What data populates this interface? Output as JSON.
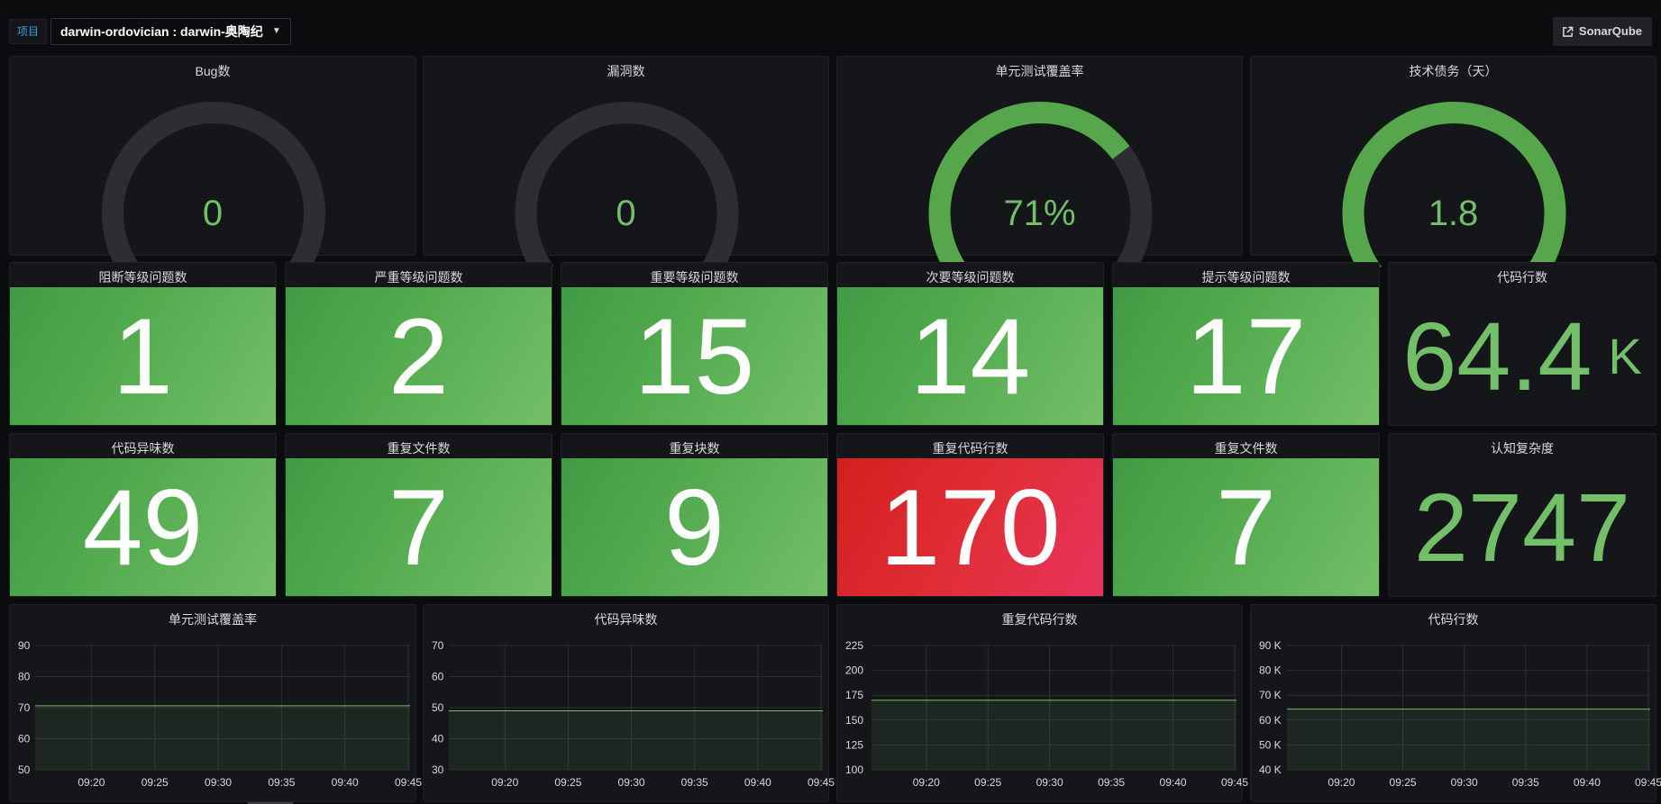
{
  "header": {
    "variable_label": "项目",
    "variable_value": "darwin-ordovician : darwin-奥陶纪",
    "link_label": "SonarQube"
  },
  "colors": {
    "green": "#73bf69",
    "red": "#e02f44",
    "track": "#2d2e31"
  },
  "gauges": [
    {
      "title": "Bug数",
      "value": "0",
      "fraction": 0
    },
    {
      "title": "漏洞数",
      "value": "0",
      "fraction": 0
    },
    {
      "title": "单元测试覆盖率",
      "value": "71%",
      "fraction": 0.71
    },
    {
      "title": "技术债务（天）",
      "value": "1.8",
      "fraction": 1
    }
  ],
  "stats_row1": [
    {
      "title": "阻断等级问题数",
      "value": "1",
      "style": "green"
    },
    {
      "title": "严重等级问题数",
      "value": "2",
      "style": "green"
    },
    {
      "title": "重要等级问题数",
      "value": "15",
      "style": "green"
    },
    {
      "title": "次要等级问题数",
      "value": "14",
      "style": "green"
    },
    {
      "title": "提示等级问题数",
      "value": "17",
      "style": "green"
    },
    {
      "title": "代码行数",
      "value": "64.4",
      "unit": "K",
      "style": "plain"
    }
  ],
  "stats_row2": [
    {
      "title": "代码异味数",
      "value": "49",
      "style": "green"
    },
    {
      "title": "重复文件数",
      "value": "7",
      "style": "green"
    },
    {
      "title": "重复块数",
      "value": "9",
      "style": "green"
    },
    {
      "title": "重复代码行数",
      "value": "170",
      "style": "red"
    },
    {
      "title": "重复文件数",
      "value": "7",
      "style": "green"
    },
    {
      "title": "认知复杂度",
      "value": "2747",
      "style": "plain"
    }
  ],
  "chart_data": [
    {
      "type": "area",
      "title": "单元测试覆盖率",
      "x": [
        "09:20",
        "09:25",
        "09:30",
        "09:35",
        "09:40",
        "09:45"
      ],
      "y_ticks": [
        "50",
        "60",
        "70",
        "80",
        "90"
      ],
      "ylim": [
        50,
        90
      ],
      "series": [
        {
          "values": [
            70.6,
            70.6,
            70.6,
            70.6,
            70.6,
            70.6
          ]
        }
      ]
    },
    {
      "type": "area",
      "title": "代码异味数",
      "x": [
        "09:20",
        "09:25",
        "09:30",
        "09:35",
        "09:40",
        "09:45"
      ],
      "y_ticks": [
        "30",
        "40",
        "50",
        "60",
        "70"
      ],
      "ylim": [
        30,
        70
      ],
      "series": [
        {
          "values": [
            49,
            49,
            49,
            49,
            49,
            49
          ]
        }
      ]
    },
    {
      "type": "area",
      "title": "重复代码行数",
      "x": [
        "09:20",
        "09:25",
        "09:30",
        "09:35",
        "09:40",
        "09:45"
      ],
      "y_ticks": [
        "100",
        "125",
        "150",
        "175",
        "200",
        "225"
      ],
      "ylim": [
        100,
        225
      ],
      "series": [
        {
          "values": [
            170,
            170,
            170,
            170,
            170,
            170
          ]
        }
      ]
    },
    {
      "type": "area",
      "title": "代码行数",
      "x": [
        "09:20",
        "09:25",
        "09:30",
        "09:35",
        "09:40",
        "09:45"
      ],
      "y_ticks": [
        "40 K",
        "50 K",
        "60 K",
        "70 K",
        "80 K",
        "90 K"
      ],
      "ylim": [
        40,
        90
      ],
      "series": [
        {
          "values": [
            64.4,
            64.4,
            64.4,
            64.4,
            64.4,
            64.4
          ]
        }
      ]
    }
  ]
}
